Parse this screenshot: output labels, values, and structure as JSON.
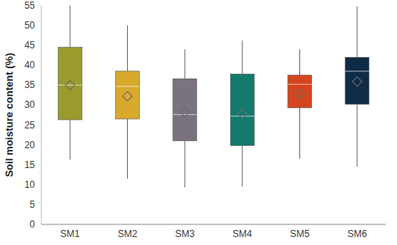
{
  "chart_data": {
    "type": "box",
    "y_label": "Soil moisture content (%)",
    "categories": [
      "SM1",
      "SM2",
      "SM3",
      "SM4",
      "SM5",
      "SM6"
    ],
    "min": [
      16.3,
      11.5,
      9.3,
      9.5,
      16.5,
      14.5
    ],
    "q1": [
      26.3,
      26.5,
      21,
      19.8,
      29.3,
      30.2
    ],
    "median": [
      35,
      34.7,
      27.6,
      27.2,
      35.2,
      38.5
    ],
    "q3": [
      44.5,
      38.5,
      36.6,
      37.8,
      37.5,
      42
    ],
    "max": [
      57,
      50,
      44,
      46.2,
      44,
      54.8
    ],
    "mean": [
      35,
      32.2,
      28.2,
      27.8,
      32.8,
      35.9
    ],
    "colors": [
      "#9a9b2c",
      "#d8a92c",
      "#7b7280",
      "#127a6c",
      "#d4441e",
      "#0f2b46"
    ],
    "marker": "diamond",
    "ylim": [
      0,
      55
    ],
    "yticks": [
      0,
      5,
      10,
      15,
      20,
      25,
      30,
      35,
      40,
      45,
      50,
      55
    ],
    "grid": false
  }
}
